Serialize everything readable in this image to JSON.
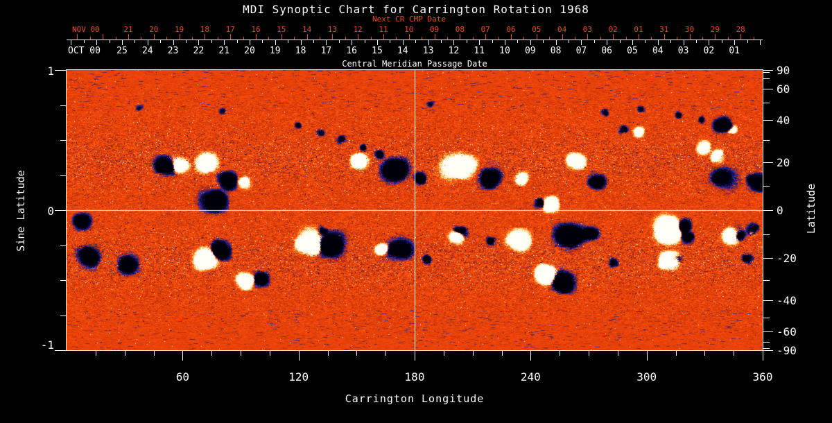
{
  "title": "MDI Synoptic Chart for Carrington Rotation 1968",
  "colors": {
    "background": "#000000",
    "text": "#FFFFFF",
    "accent_red": "#ED4A15",
    "quiet_sun_orange": "#EE4A0F",
    "positive_polarity": "#FFF8E6",
    "positive_fringe": "#FFD060",
    "negative_polarity": "#000014",
    "negative_fringe": "#2828A8"
  },
  "top_axis": {
    "label": "Next CR CMP Date",
    "month_label": "NOV 00",
    "days": [
      "21",
      "20",
      "19",
      "18",
      "17",
      "16",
      "15",
      "14",
      "13",
      "12",
      "11",
      "10",
      "09",
      "08",
      "07",
      "06",
      "05",
      "04",
      "03",
      "02",
      "01",
      "31",
      "30",
      "29",
      "28"
    ]
  },
  "cmp_axis": {
    "label": "Central Meridian Passage Date",
    "month_label": "OCT 00",
    "days": [
      "25",
      "24",
      "23",
      "22",
      "21",
      "20",
      "19",
      "18",
      "17",
      "16",
      "15",
      "14",
      "13",
      "12",
      "11",
      "10",
      "09",
      "08",
      "07",
      "06",
      "05",
      "04",
      "03",
      "02",
      "01"
    ]
  },
  "bottom_axis": {
    "label": "Carrington Longitude",
    "ticks": [
      "60",
      "120",
      "180",
      "240",
      "300",
      "360"
    ]
  },
  "left_axis": {
    "label": "Sine Latitude",
    "ticks": [
      "1",
      "0",
      "-1"
    ]
  },
  "right_axis": {
    "label": "Latitude",
    "ticks": [
      "90",
      "60",
      "40",
      "20",
      "0",
      "-20",
      "-40",
      "-60",
      "-90"
    ]
  },
  "chart_data": {
    "type": "heatmap",
    "title": "MDI Synoptic Chart for Carrington Rotation 1968",
    "quantity": "photospheric magnetic field polarity map (white = positive, dark blue/black = negative, orange = quiet sun)",
    "xlabel": "Carrington Longitude",
    "ylabel_left": "Sine Latitude",
    "ylabel_right": "Latitude",
    "xlim": [
      0,
      360
    ],
    "ylim_sine_latitude": [
      -1,
      1
    ],
    "x_major_ticks": [
      60,
      120,
      180,
      240,
      300,
      360
    ],
    "x_minor_step": 15,
    "sine_latitude_major_ticks": [
      1,
      0,
      -1
    ],
    "sine_latitude_minor_step": 0.25,
    "latitude_labeled_ticks": [
      90,
      60,
      40,
      20,
      0,
      -20,
      -40,
      -60,
      -90
    ],
    "latitude_minor_ticks": [
      80,
      70,
      50,
      30,
      10,
      -10,
      -30,
      -50,
      -70,
      -80
    ],
    "crosshair": {
      "longitude": 180,
      "sine_latitude": 0
    },
    "activity_belt_center_abs_sine_latitude": 0.35,
    "active_regions_format": "[carrington_longitude_deg, sine_latitude, polarity(+1 white / -1 dark), radius_px, strength]",
    "active_regions": [
      [
        50.9,
        0.312,
        -1,
        10,
        1.0
      ],
      [
        58.1,
        0.327,
        1,
        9,
        1.1
      ],
      [
        71.4,
        0.347,
        1,
        11,
        0.8
      ],
      [
        83.6,
        0.218,
        -1,
        10,
        0.9
      ],
      [
        91.8,
        0.203,
        1,
        7,
        0.9
      ],
      [
        76.0,
        0.079,
        -1,
        13,
        0.9
      ],
      [
        151.3,
        0.351,
        1,
        10,
        1.0
      ],
      [
        170.0,
        0.297,
        -1,
        13,
        1.1
      ],
      [
        183.6,
        0.228,
        -1,
        7,
        0.8
      ],
      [
        203.3,
        0.312,
        1,
        15,
        1.1
      ],
      [
        218.7,
        0.223,
        -1,
        11,
        0.9
      ],
      [
        234.8,
        0.218,
        1,
        7,
        0.8
      ],
      [
        250.6,
        0.045,
        1,
        8,
        1.0
      ],
      [
        244.9,
        0.054,
        -1,
        6,
        0.7
      ],
      [
        263.1,
        0.356,
        1,
        10,
        1.0
      ],
      [
        274.2,
        0.193,
        -1,
        9,
        0.8
      ],
      [
        296.4,
        0.564,
        1,
        6,
        0.9
      ],
      [
        287.8,
        0.574,
        -1,
        5,
        0.6
      ],
      [
        329.8,
        0.446,
        1,
        8,
        0.9
      ],
      [
        339.8,
        0.604,
        -1,
        9,
        1.0
      ],
      [
        344.5,
        0.579,
        1,
        5,
        0.8
      ],
      [
        336.6,
        0.391,
        1,
        7,
        0.8
      ],
      [
        338.4,
        0.238,
        -1,
        14,
        0.55
      ],
      [
        356.3,
        0.203,
        -1,
        10,
        1.0
      ],
      [
        357.4,
        0.198,
        1,
        4,
        0.7
      ],
      [
        119.7,
        0.609,
        -1,
        4,
        0.5
      ],
      [
        131.2,
        0.554,
        -1,
        4,
        0.5
      ],
      [
        141.9,
        0.505,
        -1,
        5,
        0.5
      ],
      [
        153.0,
        0.45,
        -1,
        4,
        0.5
      ],
      [
        161.6,
        0.396,
        -1,
        5,
        0.5
      ],
      [
        278.1,
        0.698,
        -1,
        4,
        0.45
      ],
      [
        297.1,
        0.723,
        -1,
        4,
        0.45
      ],
      [
        316.8,
        0.678,
        -1,
        4,
        0.45
      ],
      [
        328.3,
        0.644,
        -1,
        4,
        0.45
      ],
      [
        37.3,
        0.733,
        -1,
        4,
        0.3
      ],
      [
        80.3,
        0.708,
        -1,
        4,
        0.3
      ],
      [
        187.9,
        0.757,
        -1,
        4,
        0.3
      ],
      [
        8.0,
        -0.08,
        -1,
        9,
        0.8
      ],
      [
        11.5,
        -0.322,
        -1,
        12,
        0.8
      ],
      [
        31.9,
        -0.381,
        -1,
        11,
        0.7
      ],
      [
        71.7,
        -0.342,
        1,
        13,
        1.0
      ],
      [
        79.6,
        -0.282,
        -1,
        12,
        1.1
      ],
      [
        93.9,
        -0.505,
        1,
        9,
        1.1
      ],
      [
        100.4,
        -0.49,
        -1,
        9,
        0.9
      ],
      [
        126.2,
        -0.233,
        1,
        14,
        1.1
      ],
      [
        136.6,
        -0.243,
        -1,
        15,
        1.2
      ],
      [
        132.6,
        -0.15,
        -1,
        6,
        0.6
      ],
      [
        162.8,
        -0.282,
        1,
        8,
        0.9
      ],
      [
        172.8,
        -0.282,
        -1,
        12,
        1.0
      ],
      [
        185.7,
        -0.351,
        -1,
        5,
        0.6
      ],
      [
        201.5,
        -0.188,
        1,
        9,
        0.9
      ],
      [
        203.3,
        -0.149,
        -1,
        7,
        0.8
      ],
      [
        219.4,
        -0.218,
        -1,
        6,
        0.6
      ],
      [
        232.7,
        -0.218,
        1,
        12,
        1.0
      ],
      [
        259.6,
        -0.183,
        -1,
        13,
        1.0
      ],
      [
        248.8,
        -0.455,
        1,
        11,
        1.1
      ],
      [
        256.7,
        -0.51,
        -1,
        12,
        1.1
      ],
      [
        270.3,
        -0.173,
        -1,
        8,
        0.8
      ],
      [
        282.8,
        -0.371,
        -1,
        6,
        0.5
      ],
      [
        311.5,
        -0.144,
        1,
        15,
        1.1
      ],
      [
        318.7,
        -0.119,
        -1,
        8,
        0.9
      ],
      [
        321.6,
        -0.198,
        -1,
        7,
        0.8
      ],
      [
        310.5,
        -0.356,
        1,
        10,
        1.0
      ],
      [
        314.4,
        -0.337,
        -1,
        7,
        0.8
      ],
      [
        343.1,
        -0.183,
        1,
        9,
        0.9
      ],
      [
        347.0,
        -0.168,
        -1,
        7,
        0.8
      ],
      [
        355.6,
        -0.134,
        -1,
        8,
        0.9
      ],
      [
        354.5,
        -0.149,
        1,
        5,
        0.7
      ],
      [
        352.0,
        -0.342,
        -1,
        6,
        0.5
      ]
    ]
  }
}
